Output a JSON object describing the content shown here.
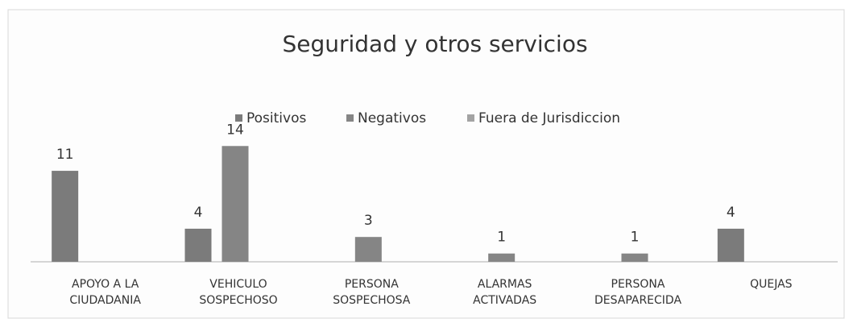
{
  "chart_data": {
    "type": "bar",
    "title": "Seguridad y otros servicios",
    "categories": [
      "APOYO A LA CIUDADANIA",
      "VEHICULO SOSPECHOSO",
      "PERSONA SOSPECHOSA",
      "ALARMAS ACTIVADAS",
      "PERSONA DESAPARECIDA",
      "QUEJAS"
    ],
    "series": [
      {
        "name": "Positivos",
        "color": "#7b7b7b",
        "values": [
          11,
          4,
          null,
          null,
          null,
          4
        ]
      },
      {
        "name": "Negativos",
        "color": "#858585",
        "values": [
          null,
          14,
          3,
          1,
          1,
          null
        ]
      },
      {
        "name": "Fuera de Jurisdiccion",
        "color": "#a3a3a3",
        "values": [
          null,
          null,
          null,
          null,
          null,
          null
        ]
      }
    ],
    "ylim": [
      0,
      15
    ],
    "legend": "top"
  }
}
